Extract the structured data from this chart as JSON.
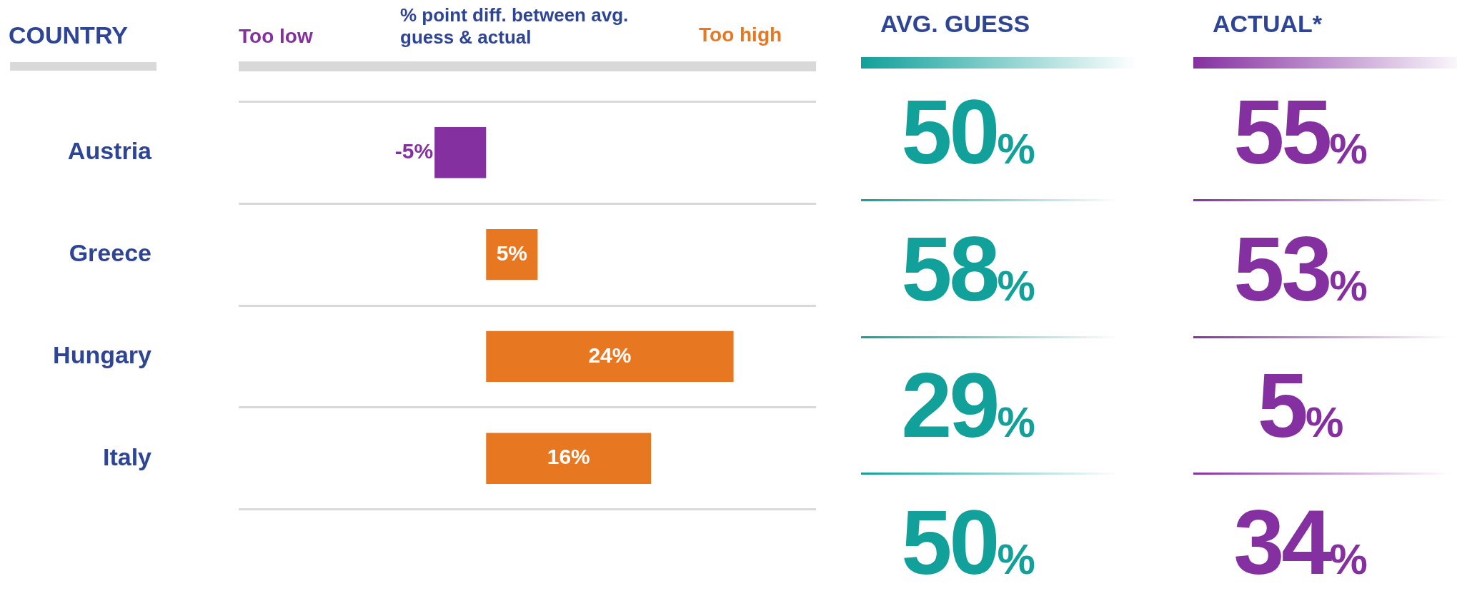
{
  "chart_data": [
    {
      "type": "bar",
      "orientation": "horizontal",
      "title": "% point diff. between avg. guess & actual",
      "ylabel": "COUNTRY",
      "annotations": [
        "Too low",
        "Too high"
      ],
      "categories": [
        "Austria",
        "Greece",
        "Hungary",
        "Italy"
      ],
      "values": [
        -5,
        5,
        24,
        16
      ],
      "colors": [
        "#8530a0",
        "#e87722",
        "#e87722",
        "#e87722"
      ],
      "value_labels": [
        "-5%",
        "5%",
        "24%",
        "16%"
      ],
      "xlim": [
        -24,
        32
      ],
      "grid": "y"
    },
    {
      "type": "other",
      "title": "AVG. GUESS",
      "values": [
        50,
        58,
        29,
        50
      ],
      "value_labels": [
        "50%",
        "58%",
        "29%",
        "50%"
      ],
      "color": "#11a09a"
    },
    {
      "type": "other",
      "title": "ACTUAL*",
      "values": [
        55,
        53,
        5,
        34
      ],
      "value_labels": [
        "55%",
        "53%",
        "5%",
        "34%"
      ],
      "color": "#8530a0"
    }
  ]
}
